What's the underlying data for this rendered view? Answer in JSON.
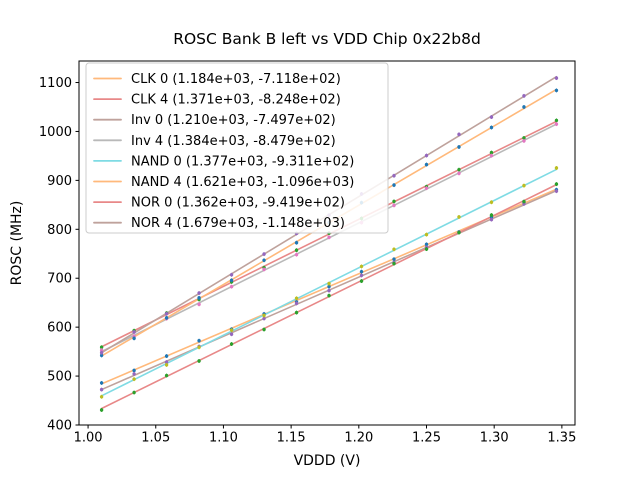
{
  "chart_data": {
    "type": "scatter",
    "title": "ROSC Bank B left vs VDD Chip 0x22b8d",
    "xlabel": "VDDD (V)",
    "ylabel": "ROSC (MHz)",
    "xlim": [
      0.9933,
      1.3597
    ],
    "ylim": [
      400,
      1144
    ],
    "grid": false,
    "legend_position": "upper left",
    "xtick_values": [
      1.0,
      1.05,
      1.1,
      1.15,
      1.2,
      1.25,
      1.3,
      1.35
    ],
    "xtick_labels": [
      "1.00",
      "1.05",
      "1.10",
      "1.15",
      "1.20",
      "1.25",
      "1.30",
      "1.35"
    ],
    "ytick_values": [
      400,
      500,
      600,
      700,
      800,
      900,
      1000,
      1100
    ],
    "ytick_labels": [
      "400",
      "500",
      "600",
      "700",
      "800",
      "900",
      "1000",
      "1100"
    ],
    "x": [
      1.01,
      1.034,
      1.058,
      1.082,
      1.106,
      1.13,
      1.154,
      1.178,
      1.202,
      1.226,
      1.25,
      1.274,
      1.298,
      1.322,
      1.346
    ],
    "yerr": 4,
    "series": [
      {
        "name": "CLK 0",
        "legend_label": "CLK 0 (1.184e+03, -7.118e+02)",
        "fit_slope": 1184,
        "fit_intercept": -711.8,
        "line_color": "#ffb97b",
        "marker_color": "#1f77b4",
        "y": [
          486.0,
          511.5,
          540.9,
          572.3,
          595.7,
          627.1,
          651.5,
          682.9,
          713.4,
          738.8,
          769.2,
          794.6,
          825.0,
          855.4,
          880.9
        ]
      },
      {
        "name": "CLK 4",
        "legend_label": "CLK 4 (1.371e+03, -8.248e+02)",
        "fit_slope": 1371,
        "fit_intercept": -824.8,
        "line_color": "#e88888",
        "marker_color": "#2ca02c",
        "y": [
          558.9,
          592.8,
          628.7,
          656.6,
          692.5,
          721.4,
          757.3,
          792.2,
          822.2,
          857.0,
          887.0,
          921.9,
          956.8,
          986.7,
          1022.6
        ]
      },
      {
        "name": "Inv 0",
        "legend_label": "Inv 0 (1.210e+03, -7.497e+02)",
        "fit_slope": 1210,
        "fit_intercept": -749.7,
        "line_color": "#bfa29c",
        "marker_color": "#9467bd",
        "y": [
          472.4,
          504.4,
          528.5,
          560.5,
          585.6,
          617.6,
          648.6,
          674.7,
          705.7,
          731.8,
          762.8,
          793.8,
          819.9,
          851.9,
          878.0
        ]
      },
      {
        "name": "Inv 4",
        "legend_label": "Inv 4 (1.384e+03, -8.479e+02)",
        "fit_slope": 1384,
        "fit_intercept": -847.9,
        "line_color": "#b9b9b9",
        "marker_color": "#e377c2",
        "y": [
          552.9,
          581.2,
          617.4,
          646.6,
          682.8,
          718.0,
          748.2,
          783.5,
          813.7,
          848.9,
          884.1,
          914.3,
          950.5,
          980.7,
          1015.0
        ]
      },
      {
        "name": "NAND 0",
        "legend_label": "NAND 0 (1.377e+03, -9.311e+02)",
        "fit_slope": 1377,
        "fit_intercept": -931.1,
        "line_color": "#7fdbe4",
        "marker_color": "#bcbd22",
        "y": [
          457.7,
          493.7,
          522.8,
          558.8,
          593.8,
          623.9,
          659.0,
          689.0,
          724.1,
          759.1,
          789.2,
          825.2,
          855.3,
          889.3,
          925.3
        ]
      },
      {
        "name": "NAND 4",
        "legend_label": "NAND 4 (1.621e+03, -1.096e+03)",
        "fit_slope": 1621,
        "fit_intercept": -1096,
        "line_color": "#ffb97b",
        "marker_color": "#1f77b4",
        "y": [
          542.2,
          577.1,
          619.0,
          659.9,
          695.8,
          736.7,
          772.6,
          813.5,
          854.4,
          890.3,
          932.3,
          968.2,
          1008.1,
          1050.0,
          1083.9
        ]
      },
      {
        "name": "NOR 0",
        "legend_label": "NOR 0 (1.362e+03, -9.419e+02)",
        "fit_slope": 1362,
        "fit_intercept": -941.9,
        "line_color": "#e88888",
        "marker_color": "#2ca02c",
        "y": [
          430.7,
          466.4,
          501.1,
          530.8,
          565.5,
          595.2,
          629.8,
          664.5,
          694.2,
          729.9,
          759.6,
          793.3,
          829.0,
          856.7,
          892.4
        ]
      },
      {
        "name": "NOR 4",
        "legend_label": "NOR 4 (1.679e+03, -1.148e+03)",
        "fit_slope": 1679,
        "fit_intercept": -1148,
        "line_color": "#bfa29c",
        "marker_color": "#9467bd",
        "y": [
          547.8,
          590.1,
          627.4,
          669.7,
          707.0,
          749.3,
          791.6,
          828.9,
          872.2,
          909.5,
          950.8,
          994.1,
          1029.4,
          1072.7,
          1109.1
        ]
      }
    ]
  },
  "layout_text": {
    "spine_color": "#000000",
    "legend_border_color": "#cccccc"
  }
}
